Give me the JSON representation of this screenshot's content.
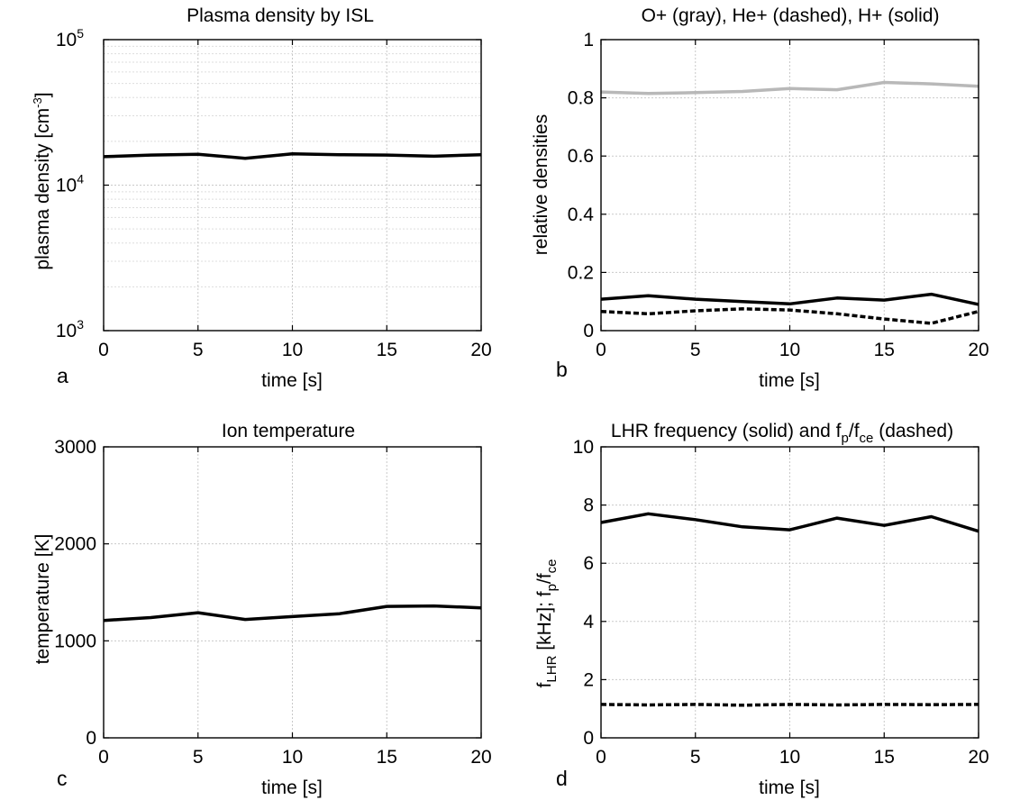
{
  "chart_data": [
    {
      "panel": "a",
      "type": "line",
      "title": "Plasma density by ISL",
      "xlabel": "time [s]",
      "ylabel": "plasma density [cm⁻³]",
      "yscale": "log",
      "xlim": [
        0,
        20
      ],
      "ylim": [
        1000,
        100000
      ],
      "xticks": [
        0,
        5,
        10,
        15,
        20
      ],
      "yticks": [
        1000,
        10000,
        100000
      ],
      "ytick_labels": [
        [
          "10",
          "3"
        ],
        [
          "10",
          "4"
        ],
        [
          "10",
          "5"
        ]
      ],
      "grid": true,
      "series": [
        {
          "color": "#000000",
          "style": "solid",
          "x": [
            0,
            2.5,
            5,
            7.5,
            10,
            12.5,
            15,
            17.5,
            20
          ],
          "y": [
            15700,
            16100,
            16300,
            15300,
            16400,
            16200,
            16100,
            15800,
            16200
          ]
        }
      ]
    },
    {
      "panel": "b",
      "type": "line",
      "title": "O+ (gray), He+ (dashed), H+ (solid)",
      "xlabel": "time [s]",
      "ylabel": "relative densities",
      "xlim": [
        0,
        20
      ],
      "ylim": [
        0,
        1
      ],
      "xticks": [
        0,
        5,
        10,
        15,
        20
      ],
      "yticks": [
        0,
        0.2,
        0.4,
        0.6,
        0.8,
        1
      ],
      "ytick_labels": [
        "0",
        "0.2",
        "0.4",
        "0.6",
        "0.8",
        "1"
      ],
      "grid": true,
      "series": [
        {
          "color": "#b8b8b8",
          "style": "solid",
          "x": [
            0,
            2.5,
            5,
            7.5,
            10,
            12.5,
            15,
            17.5,
            20
          ],
          "y": [
            0.82,
            0.815,
            0.818,
            0.822,
            0.832,
            0.828,
            0.853,
            0.848,
            0.84
          ]
        },
        {
          "color": "#000000",
          "style": "dashed",
          "x": [
            0,
            2.5,
            5,
            7.5,
            10,
            12.5,
            15,
            17.5,
            20
          ],
          "y": [
            0.066,
            0.058,
            0.068,
            0.075,
            0.071,
            0.058,
            0.04,
            0.025,
            0.066
          ]
        },
        {
          "color": "#000000",
          "style": "solid",
          "x": [
            0,
            2.5,
            5,
            7.5,
            10,
            12.5,
            15,
            17.5,
            20
          ],
          "y": [
            0.108,
            0.12,
            0.108,
            0.1,
            0.092,
            0.112,
            0.105,
            0.125,
            0.09
          ]
        }
      ]
    },
    {
      "panel": "c",
      "type": "line",
      "title": "Ion temperature",
      "xlabel": "time [s]",
      "ylabel": "temperature [K]",
      "xlim": [
        0,
        20
      ],
      "ylim": [
        0,
        3000
      ],
      "xticks": [
        0,
        5,
        10,
        15,
        20
      ],
      "yticks": [
        0,
        1000,
        2000,
        3000
      ],
      "ytick_labels": [
        "0",
        "1000",
        "2000",
        "3000"
      ],
      "grid": true,
      "series": [
        {
          "color": "#000000",
          "style": "solid",
          "x": [
            0,
            2.5,
            5,
            7.5,
            10,
            12.5,
            15,
            17.5,
            20
          ],
          "y": [
            1210,
            1240,
            1290,
            1220,
            1250,
            1280,
            1355,
            1360,
            1340
          ]
        }
      ]
    },
    {
      "panel": "d",
      "type": "line",
      "title": "LHR frequency (solid) and fp/fce (dashed)",
      "xlabel": "time [s]",
      "ylabel": "fLHR [kHz]; fp/fce",
      "xlim": [
        0,
        20
      ],
      "ylim": [
        0,
        10
      ],
      "xticks": [
        0,
        5,
        10,
        15,
        20
      ],
      "yticks": [
        0,
        2,
        4,
        6,
        8,
        10
      ],
      "ytick_labels": [
        "0",
        "2",
        "4",
        "6",
        "8",
        "10"
      ],
      "grid": true,
      "series": [
        {
          "color": "#000000",
          "style": "solid",
          "x": [
            0,
            2.5,
            5,
            7.5,
            10,
            12.5,
            15,
            17.5,
            20
          ],
          "y": [
            7.4,
            7.7,
            7.5,
            7.25,
            7.15,
            7.55,
            7.3,
            7.6,
            7.1
          ]
        },
        {
          "color": "#000000",
          "style": "dashed",
          "x": [
            0,
            2.5,
            5,
            7.5,
            10,
            12.5,
            15,
            17.5,
            20
          ],
          "y": [
            1.15,
            1.13,
            1.15,
            1.12,
            1.15,
            1.13,
            1.15,
            1.14,
            1.15
          ]
        }
      ]
    }
  ],
  "labels": {
    "a": {
      "title": "Plasma density by ISL",
      "xlabel": "time [s]",
      "ylabel_main": "plasma density [cm",
      "ylabel_sup": "-3",
      "ylabel_end": "]",
      "panel": "a"
    },
    "b": {
      "title": "O+ (gray), He+ (dashed), H+ (solid)",
      "xlabel": "time [s]",
      "ylabel": "relative densities",
      "panel": "b"
    },
    "c": {
      "title": "Ion temperature",
      "xlabel": "time [s]",
      "ylabel": "temperature [K]",
      "panel": "c"
    },
    "d": {
      "title_pre": "LHR frequency (solid) and f",
      "title_sub1": "p",
      "title_mid": "/f",
      "title_sub2": "ce",
      "title_post": " (dashed)",
      "ylabel_f": "f",
      "ylabel_sub1": "LHR",
      "ylabel_mid": " [kHz];  f",
      "ylabel_sub2": "p",
      "ylabel_slash": "/f",
      "ylabel_sub3": "ce",
      "xlabel": "time [s]",
      "panel": "d"
    }
  }
}
